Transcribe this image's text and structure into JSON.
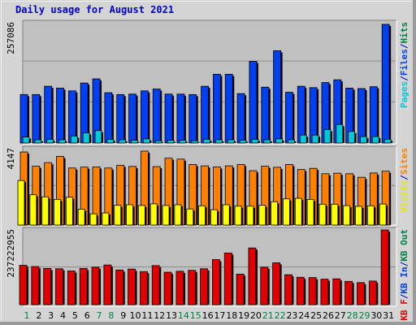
{
  "title": "Daily usage for August 2021",
  "colors": {
    "pages": "#00c8d8",
    "hits": "#0040f0",
    "visits": "#ffff00",
    "sites": "#ff8000",
    "kbytes": "#e00000",
    "panel_bg": "#c0c0c0",
    "frame_bg": "#d4d4d4",
    "title": "#0000c8",
    "weekend_day": "#008040",
    "weekday_day": "#0000c8"
  },
  "chart_data": [
    {
      "type": "bar",
      "panel": "hits_files_pages",
      "ymax_label": "257086",
      "ylim": [
        0,
        257086
      ],
      "y_axis_legend": [
        {
          "text": "Pages",
          "color": "#00c8d8"
        },
        {
          "text": "/",
          "color": "#0000c8"
        },
        {
          "text": "Files",
          "color": "#0040f0"
        },
        {
          "text": "/",
          "color": "#0000c8"
        },
        {
          "text": "Hits",
          "color": "#008040"
        }
      ],
      "categories": [
        "1",
        "2",
        "3",
        "4",
        "5",
        "6",
        "7",
        "8",
        "9",
        "10",
        "11",
        "12",
        "13",
        "14",
        "15",
        "16",
        "17",
        "18",
        "19",
        "20",
        "21",
        "22",
        "23",
        "24",
        "25",
        "26",
        "27",
        "28",
        "29",
        "30",
        "31"
      ],
      "series": [
        {
          "name": "Hits",
          "values": [
            105000,
            105000,
            123000,
            119000,
            113000,
            130000,
            139000,
            109000,
            105000,
            106000,
            113000,
            117000,
            106000,
            106000,
            105000,
            123000,
            149000,
            149000,
            107000,
            177000,
            121000,
            200000,
            110000,
            123000,
            120000,
            131000,
            137000,
            119000,
            118000,
            122000,
            257086
          ]
        },
        {
          "name": "Pages",
          "values": [
            13000,
            7000,
            8000,
            7000,
            15000,
            22000,
            27000,
            8000,
            7000,
            6000,
            9000,
            5000,
            6000,
            6000,
            5000,
            8000,
            7000,
            7000,
            6000,
            8000,
            7000,
            9000,
            7000,
            17000,
            17000,
            29000,
            40000,
            25000,
            14000,
            14000,
            8000
          ]
        }
      ]
    },
    {
      "type": "bar",
      "panel": "visits_sites",
      "ymax_label": "4147",
      "ylim": [
        0,
        4147
      ],
      "y_axis_legend": [
        {
          "text": "Visits",
          "color": "#e8e800"
        },
        {
          "text": "/",
          "color": "#0000c8"
        },
        {
          "text": "Sites",
          "color": "#ff8000"
        }
      ],
      "categories": [
        "1",
        "2",
        "3",
        "4",
        "5",
        "6",
        "7",
        "8",
        "9",
        "10",
        "11",
        "12",
        "13",
        "14",
        "15",
        "16",
        "17",
        "18",
        "19",
        "20",
        "21",
        "22",
        "23",
        "24",
        "25",
        "26",
        "27",
        "28",
        "29",
        "30",
        "31"
      ],
      "series": [
        {
          "name": "Sites",
          "values": [
            4100,
            3300,
            3500,
            3850,
            3200,
            3250,
            3260,
            3200,
            3350,
            3290,
            4147,
            3280,
            3750,
            3700,
            3400,
            3320,
            3260,
            3320,
            3400,
            3050,
            3300,
            3240,
            3400,
            3120,
            3180,
            2880,
            2910,
            2880,
            2680,
            2920,
            3020
          ]
        },
        {
          "name": "Visits",
          "values": [
            2500,
            1700,
            1580,
            1440,
            1560,
            890,
            630,
            680,
            1110,
            1140,
            1100,
            1190,
            1100,
            1140,
            900,
            1080,
            860,
            1140,
            1060,
            1060,
            1110,
            1310,
            1470,
            1500,
            1440,
            1170,
            1170,
            1090,
            1050,
            1080,
            1180
          ]
        }
      ]
    },
    {
      "type": "bar",
      "panel": "kbytes",
      "ymax_label": "237222955",
      "ylim": [
        0,
        237222955
      ],
      "y_axis_legend": [
        {
          "text": "KB F",
          "color": "#e00000"
        },
        {
          "text": "/",
          "color": "#0000c8"
        },
        {
          "text": "KB In",
          "color": "#0040f0"
        },
        {
          "text": "/",
          "color": "#0000c8"
        },
        {
          "text": "KB Out",
          "color": "#008040"
        }
      ],
      "categories": [
        "1",
        "2",
        "3",
        "4",
        "5",
        "6",
        "7",
        "8",
        "9",
        "10",
        "11",
        "12",
        "13",
        "14",
        "15",
        "16",
        "17",
        "18",
        "19",
        "20",
        "21",
        "22",
        "23",
        "24",
        "25",
        "26",
        "27",
        "28",
        "29",
        "30",
        "31"
      ],
      "series": [
        {
          "name": "KB F",
          "values": [
            125000000,
            121000000,
            115000000,
            114000000,
            107000000,
            115000000,
            119000000,
            126000000,
            110000000,
            113000000,
            105000000,
            124000000,
            103000000,
            106000000,
            109000000,
            114000000,
            143000000,
            164000000,
            97000000,
            180000000,
            119000000,
            133000000,
            95000000,
            87000000,
            86000000,
            81000000,
            82000000,
            74000000,
            70000000,
            75000000,
            237222955
          ]
        }
      ]
    }
  ]
}
